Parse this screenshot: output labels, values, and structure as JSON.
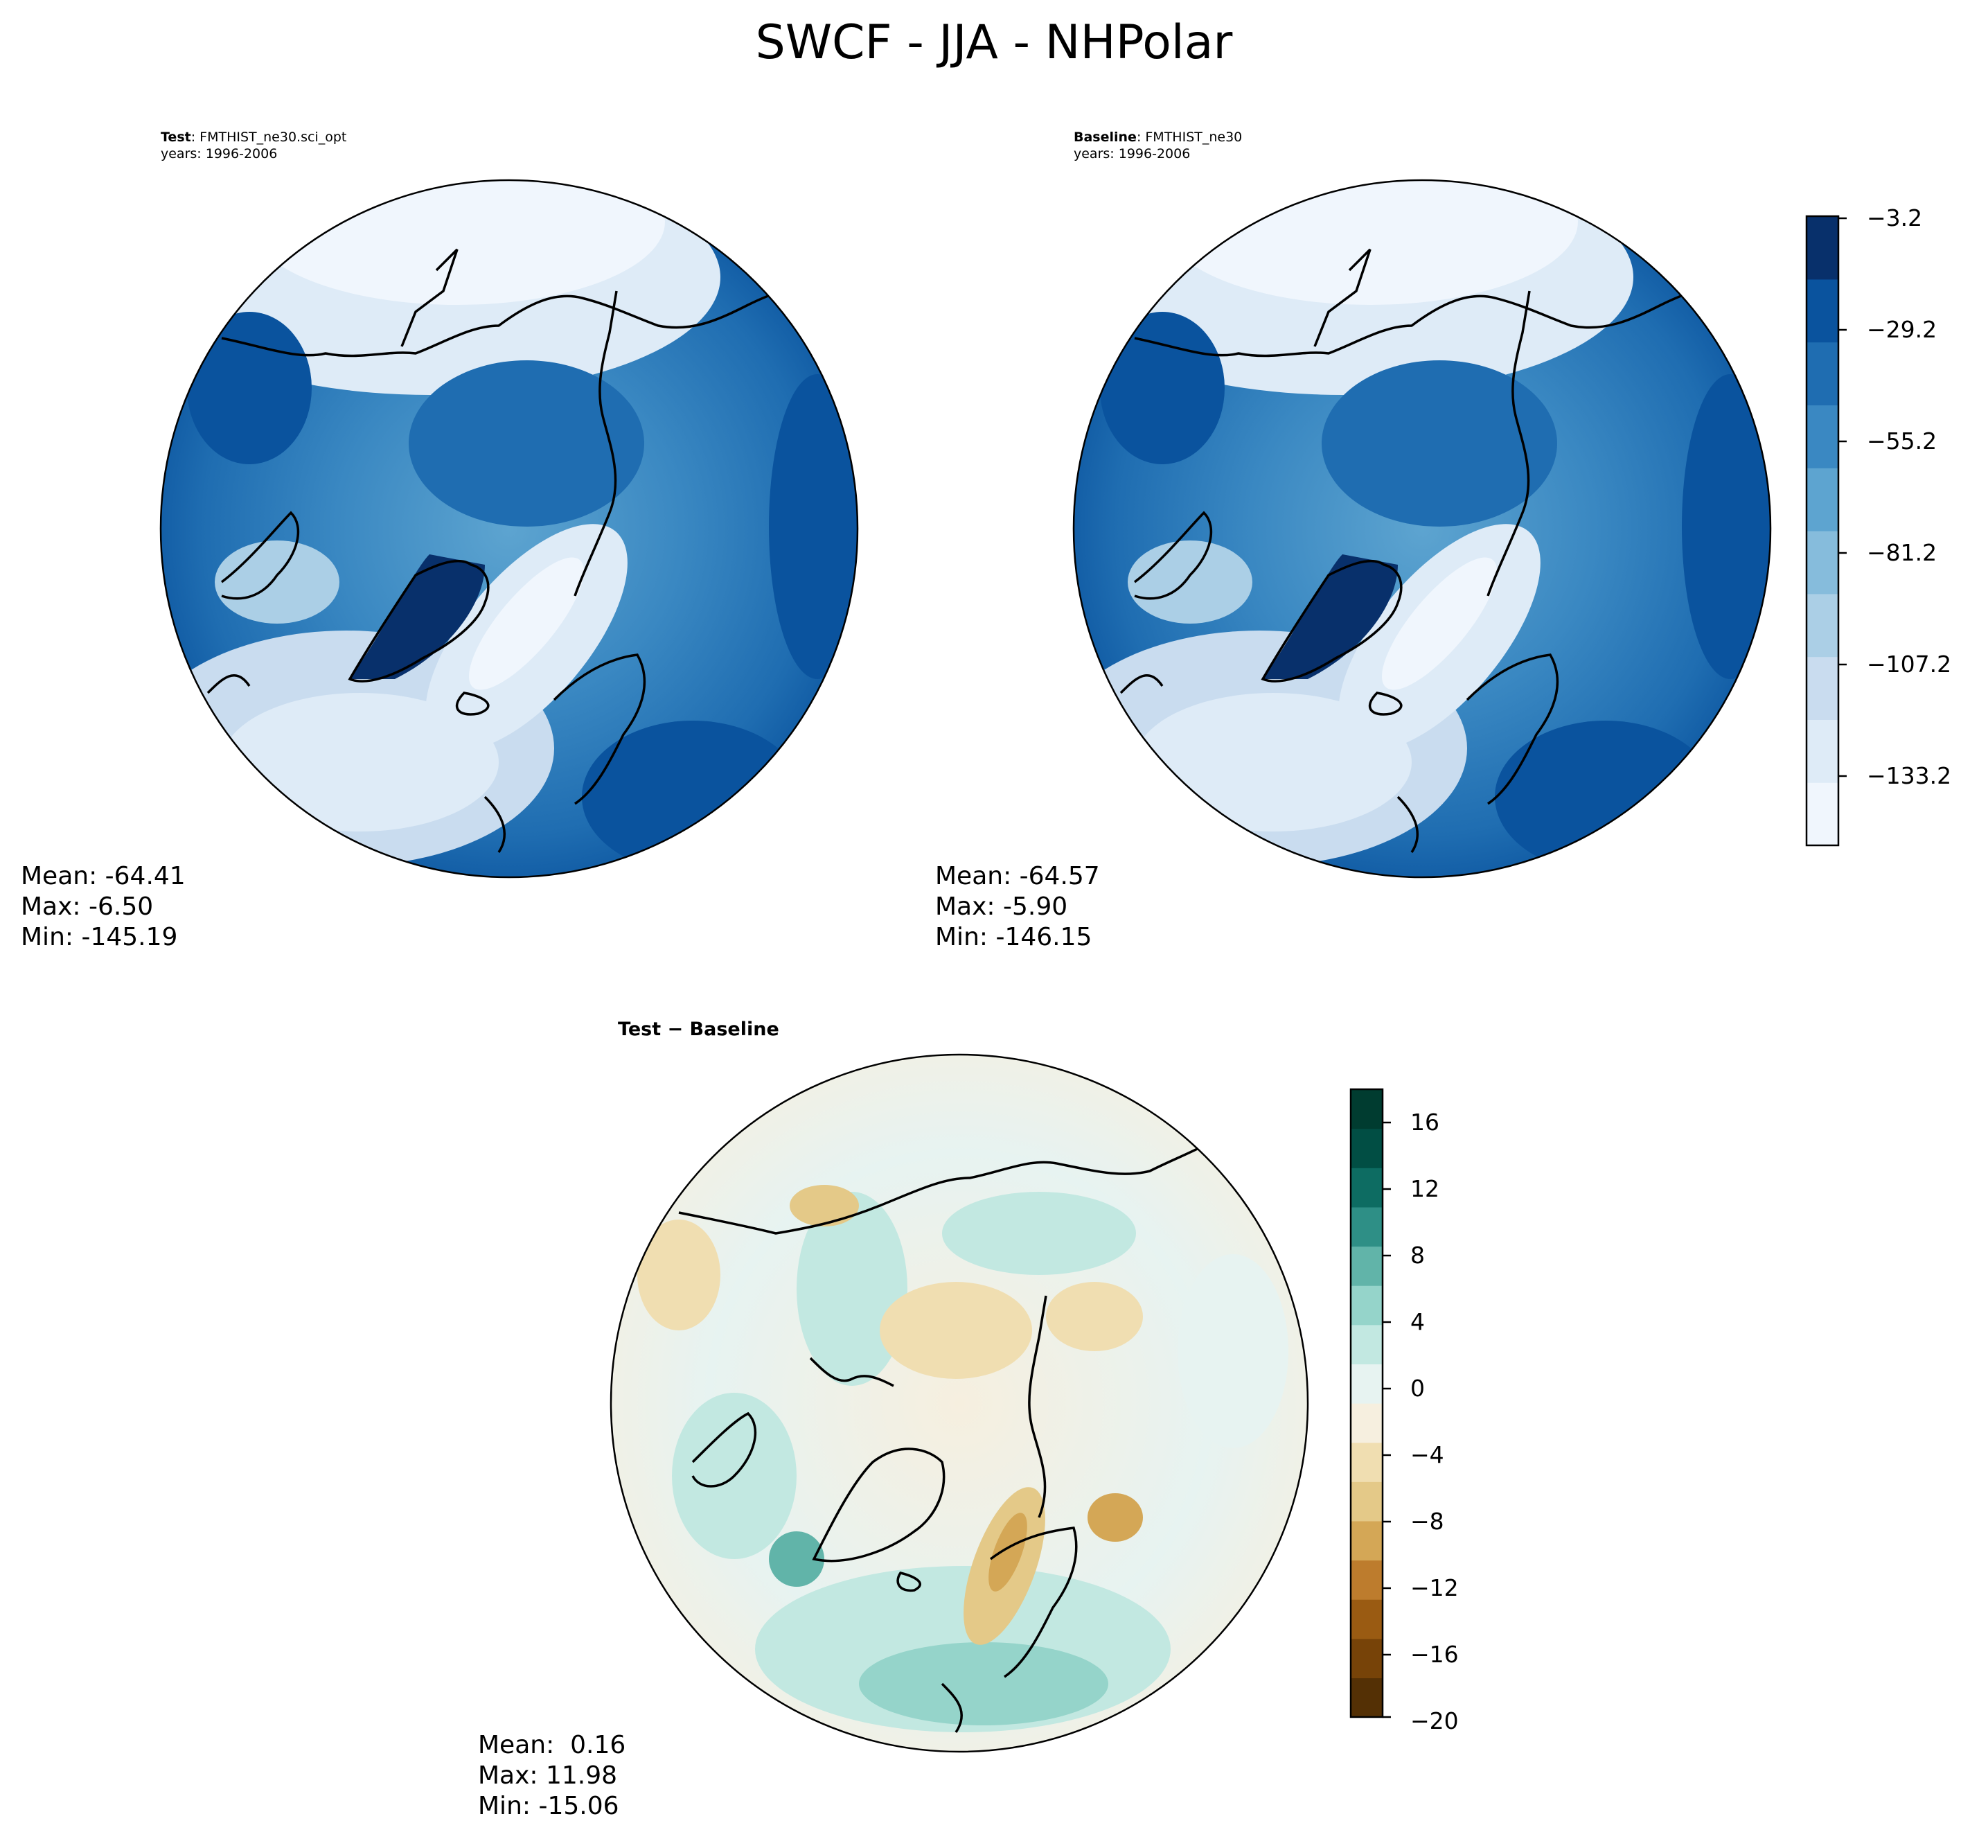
{
  "title": "SWCF - JJA - NHPolar",
  "panels": {
    "test": {
      "label_bold": "Test",
      "label_rest": ": FMTHIST_ne30.sci_opt",
      "years": "years: 1996-2006",
      "mean": "Mean: -64.41",
      "max": "Max: -6.50",
      "min": "Min: -145.19"
    },
    "baseline": {
      "label_bold": "Baseline",
      "label_rest": ": FMTHIST_ne30",
      "years": "years: 1996-2006",
      "mean": "Mean: -64.57",
      "max": "Max: -5.90",
      "min": "Min: -146.15"
    },
    "diff": {
      "label": "Test − Baseline",
      "mean": "Mean:  0.16",
      "max": "Max: 11.98",
      "min": "Min: -15.06"
    }
  },
  "colorbars": {
    "main": {
      "ticks": [
        "−3.2",
        "−29.2",
        "−55.2",
        "−81.2",
        "−107.2",
        "−133.2"
      ],
      "colors": [
        "#f0f6fd",
        "#deebf7",
        "#c9dcef",
        "#abcfe6",
        "#86bcdc",
        "#5da4d0",
        "#3a88c2",
        "#1f6db1",
        "#0a539e",
        "#08306b"
      ]
    },
    "diff": {
      "ticks": [
        "16",
        "12",
        "8",
        "4",
        "0",
        "−4",
        "−8",
        "−12",
        "−16",
        "−20"
      ],
      "colors": [
        "#543005",
        "#774308",
        "#9a5b12",
        "#bd7c2d",
        "#d4a756",
        "#e4c988",
        "#f0deb1",
        "#f6efdf",
        "#e7f3f1",
        "#c2e8e1",
        "#95d4ca",
        "#61b4a9",
        "#2e8f86",
        "#0d6c62",
        "#014e44",
        "#003c30"
      ]
    }
  }
}
